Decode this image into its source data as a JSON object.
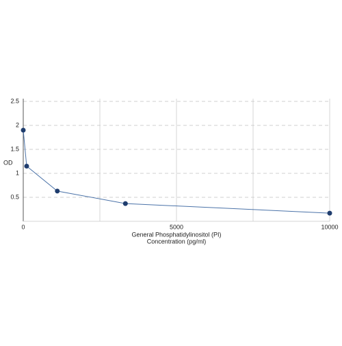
{
  "chart_data": {
    "type": "line",
    "xlabel": [
      "General Phosphatidylinositol (PI)",
      "Concentration (pg/ml)"
    ],
    "ylabel": "OD",
    "x": [
      0,
      111,
      1111,
      3333,
      10000
    ],
    "series": [
      {
        "color": "#1f3d6e",
        "line_color": "#4a72a8",
        "values": [
          1.9,
          1.15,
          0.63,
          0.37,
          0.17
        ]
      }
    ],
    "xlim": [
      0,
      10000
    ],
    "xticks": [
      0,
      5000,
      10000
    ],
    "xgrid": [
      2500,
      5000,
      7500,
      10000
    ],
    "ylim": [
      0,
      2.5
    ],
    "yticks": [
      0.5,
      1,
      1.5,
      2,
      2.5
    ],
    "grid": true
  }
}
